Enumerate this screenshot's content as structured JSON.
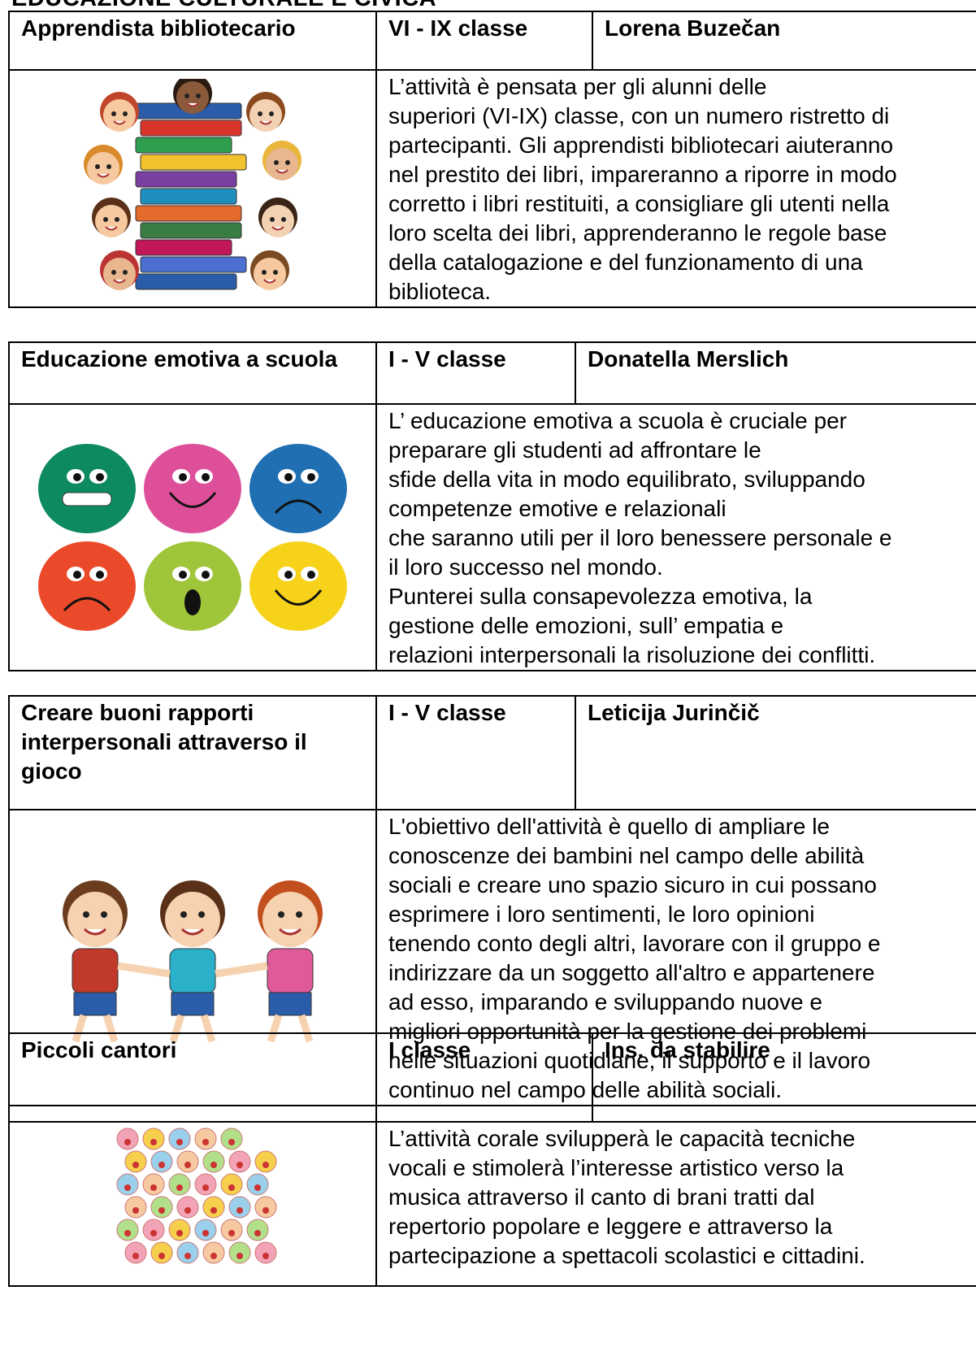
{
  "heading": "EDUCAZIONE CULTURALE E CIVICA",
  "activities": [
    {
      "title": "Apprendista bibliotecario",
      "class": "VI - IX classe",
      "teacher": "Lorena Buzečan",
      "description": [
        "L’attività è pensata per gli alunni delle",
        "superiori (VI-IX) classe, con un numero ristretto di",
        "partecipanti. Gli apprendisti bibliotecari aiuteranno",
        "nel prestito dei libri, impareranno a riporre in modo",
        "corretto i libri restituiti, a consigliare gli utenti nella",
        "loro scelta dei libri, apprenderanno le regole base",
        "della catalogazione e del funzionamento di una",
        "biblioteca."
      ]
    },
    {
      "title": "Educazione emotiva a scuola",
      "class": "I - V classe",
      "teacher": "Donatella Merslich",
      "description": [
        "L’ educazione emotiva a scuola è cruciale per",
        "preparare gli studenti ad affrontare le",
        "sfide della vita in modo equilibrato, sviluppando",
        "competenze emotive e relazionali",
        "che saranno utili per il loro benessere personale e",
        "il loro successo nel mondo.",
        "Punterei sulla consapevolezza emotiva, la",
        "gestione delle emozioni, sull’ empatia e",
        "relazioni interpersonali la risoluzione dei conflitti."
      ]
    },
    {
      "title": "Creare buoni rapporti interpersonali attraverso il gioco",
      "class": "I - V classe",
      "teacher": "Leticija Jurinčič",
      "description": [
        "L'obiettivo dell'attività è quello di ampliare le",
        "conoscenze dei bambini nel campo delle abilità",
        "sociali e creare uno spazio sicuro in cui possano",
        "esprimere i loro sentimenti, le loro opinioni",
        "tenendo conto degli altri, lavorare con il gruppo e",
        "indirizzare da un soggetto all'altro e appartenere",
        "ad esso, imparando e sviluppando nuove e",
        "migliori opportunità per la gestione dei problemi",
        "nelle situazioni quotidiane, il supporto e il lavoro",
        "continuo nel campo delle abilità sociali."
      ]
    },
    {
      "title": "Piccoli cantori",
      "class": "I  classe",
      "teacher": "Ins. da stabilire",
      "description": [
        "L’attività corale svilupperà le capacità tecniche",
        "vocali e stimolerà l’interesse artistico verso la",
        "musica attraverso il canto di brani tratti dal",
        "repertorio popolare e leggere e attraverso la",
        "partecipazione a spettacoli scolastici e cittadini."
      ]
    }
  ]
}
